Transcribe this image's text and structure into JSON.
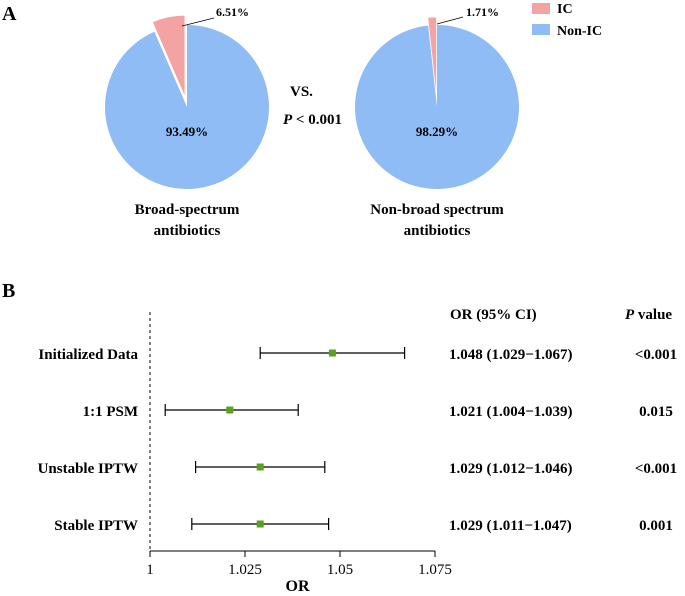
{
  "colors": {
    "ic": "#F4A3A3",
    "non_ic": "#8FBCF5",
    "point": "#5BA01E"
  },
  "panel_a": {
    "letter": "A",
    "vs": "VS.",
    "p_italic": "P",
    "p_rest": " < 0.001",
    "legend": [
      "IC",
      "Non-IC"
    ]
  },
  "panel_b": {
    "letter": "B",
    "header_or": "OR (95% CI)",
    "header_p_italic": "P",
    "header_p_rest": " value"
  },
  "chart_data": [
    {
      "type": "pie",
      "title_lines": [
        "Broad-spectrum",
        "antibiotics"
      ],
      "slices": [
        {
          "name": "IC",
          "value": 6.51,
          "label": "6.51%",
          "exploded": true
        },
        {
          "name": "Non-IC",
          "value": 93.49,
          "label": "93.49%"
        }
      ]
    },
    {
      "type": "pie",
      "title_lines": [
        "Non-broad spectrum",
        "antibiotics"
      ],
      "slices": [
        {
          "name": "IC",
          "value": 1.71,
          "label": "1.71%",
          "exploded": true
        },
        {
          "name": "Non-IC",
          "value": 98.29,
          "label": "98.29%"
        }
      ]
    },
    {
      "type": "forest",
      "xlabel": "OR",
      "xlim": [
        1,
        1.075
      ],
      "xticks": [
        1,
        1.025,
        1.05,
        1.075
      ],
      "xtick_labels": [
        "1",
        "1.025",
        "1.05",
        "1.075"
      ],
      "reference_line": 1,
      "rows": [
        {
          "label": "Initialized Data",
          "or": 1.048,
          "lo": 1.029,
          "hi": 1.067,
          "ci_text": "1.048 (1.029−1.067)",
          "p": "<0.001"
        },
        {
          "label": "1:1 PSM",
          "or": 1.021,
          "lo": 1.004,
          "hi": 1.039,
          "ci_text": "1.021 (1.004−1.039)",
          "p": "0.015"
        },
        {
          "label": "Unstable IPTW",
          "or": 1.029,
          "lo": 1.012,
          "hi": 1.046,
          "ci_text": "1.029 (1.012−1.046)",
          "p": "<0.001"
        },
        {
          "label": "Stable IPTW",
          "or": 1.029,
          "lo": 1.011,
          "hi": 1.047,
          "ci_text": "1.029 (1.011−1.047)",
          "p": "0.001"
        }
      ]
    }
  ]
}
